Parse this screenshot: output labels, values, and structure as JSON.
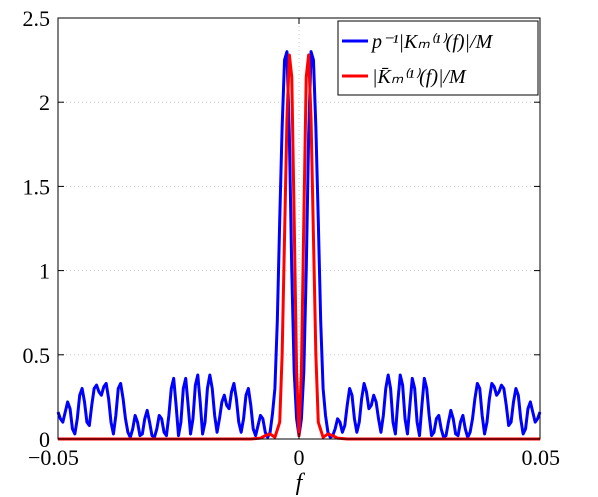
{
  "chart_data": {
    "type": "line",
    "xlabel": "f",
    "ylabel": "",
    "xlim": [
      -0.05,
      0.05
    ],
    "ylim": [
      0,
      2.5
    ],
    "grid": true,
    "legend_position": "top-right",
    "x_ticks": [
      -0.05,
      0,
      0.05
    ],
    "x_tick_labels": [
      "−0.05",
      "0",
      "0.05"
    ],
    "y_ticks": [
      0,
      0.5,
      1,
      1.5,
      2,
      2.5
    ],
    "y_tick_labels": [
      "0",
      "0.5",
      "1",
      "1.5",
      "2",
      "2.5"
    ],
    "series": [
      {
        "name": "p⁻¹|Kₘ⁽¹⁾(f)|/M",
        "color": "#0000ff",
        "x": [
          -0.05,
          -0.0495,
          -0.049,
          -0.0485,
          -0.048,
          -0.0475,
          -0.047,
          -0.0465,
          -0.046,
          -0.0455,
          -0.045,
          -0.0445,
          -0.044,
          -0.0435,
          -0.043,
          -0.0425,
          -0.042,
          -0.0415,
          -0.041,
          -0.0405,
          -0.04,
          -0.0395,
          -0.039,
          -0.0385,
          -0.038,
          -0.0375,
          -0.037,
          -0.0365,
          -0.036,
          -0.0355,
          -0.035,
          -0.0345,
          -0.034,
          -0.0335,
          -0.033,
          -0.0325,
          -0.032,
          -0.0315,
          -0.031,
          -0.0305,
          -0.03,
          -0.0295,
          -0.029,
          -0.0285,
          -0.028,
          -0.0275,
          -0.027,
          -0.0265,
          -0.026,
          -0.0255,
          -0.025,
          -0.0245,
          -0.024,
          -0.0235,
          -0.023,
          -0.0225,
          -0.022,
          -0.0215,
          -0.021,
          -0.0205,
          -0.02,
          -0.0195,
          -0.019,
          -0.0185,
          -0.018,
          -0.0175,
          -0.017,
          -0.0165,
          -0.016,
          -0.0155,
          -0.015,
          -0.0145,
          -0.014,
          -0.0135,
          -0.013,
          -0.0125,
          -0.012,
          -0.0115,
          -0.011,
          -0.0105,
          -0.01,
          -0.0095,
          -0.009,
          -0.0085,
          -0.008,
          -0.0075,
          -0.007,
          -0.0065,
          -0.006,
          -0.0055,
          -0.005,
          -0.0045,
          -0.004,
          -0.0035,
          -0.003,
          -0.0025,
          -0.002,
          -0.0015,
          -0.001,
          -0.0005,
          0,
          0.0005,
          0.001,
          0.0015,
          0.002,
          0.0025,
          0.003,
          0.0035,
          0.004,
          0.0045,
          0.005,
          0.0055,
          0.006,
          0.0065,
          0.007,
          0.0075,
          0.008,
          0.0085,
          0.009,
          0.0095,
          0.01,
          0.0105,
          0.011,
          0.0115,
          0.012,
          0.0125,
          0.013,
          0.0135,
          0.014,
          0.0145,
          0.015,
          0.0155,
          0.016,
          0.0165,
          0.017,
          0.0175,
          0.018,
          0.0185,
          0.019,
          0.0195,
          0.02,
          0.0205,
          0.021,
          0.0215,
          0.022,
          0.0225,
          0.023,
          0.0235,
          0.024,
          0.0245,
          0.025,
          0.0255,
          0.026,
          0.0265,
          0.027,
          0.0275,
          0.028,
          0.0285,
          0.029,
          0.0295,
          0.03,
          0.0305,
          0.031,
          0.0315,
          0.032,
          0.0325,
          0.033,
          0.0335,
          0.034,
          0.0345,
          0.035,
          0.0355,
          0.036,
          0.0365,
          0.037,
          0.0375,
          0.038,
          0.0385,
          0.039,
          0.0395,
          0.04,
          0.0405,
          0.041,
          0.0415,
          0.042,
          0.0425,
          0.043,
          0.0435,
          0.044,
          0.0445,
          0.045,
          0.0455,
          0.046,
          0.0465,
          0.047,
          0.0475,
          0.048,
          0.0485,
          0.049,
          0.0495,
          0.05
        ],
        "y": [
          0.16,
          0.12,
          0.1,
          0.16,
          0.22,
          0.18,
          0.06,
          0.03,
          0.12,
          0.26,
          0.3,
          0.22,
          0.1,
          0.08,
          0.2,
          0.3,
          0.32,
          0.28,
          0.26,
          0.31,
          0.33,
          0.24,
          0.1,
          0.03,
          0.14,
          0.3,
          0.33,
          0.24,
          0.12,
          0.04,
          0.01,
          0.06,
          0.14,
          0.1,
          0.02,
          0.03,
          0.12,
          0.17,
          0.1,
          0.02,
          0.01,
          0.06,
          0.14,
          0.12,
          0.04,
          0.02,
          0.14,
          0.3,
          0.36,
          0.2,
          0.02,
          0.1,
          0.3,
          0.36,
          0.2,
          0.03,
          0.12,
          0.32,
          0.38,
          0.22,
          0.03,
          0.1,
          0.3,
          0.38,
          0.3,
          0.14,
          0.04,
          0.12,
          0.22,
          0.26,
          0.2,
          0.18,
          0.28,
          0.33,
          0.24,
          0.1,
          0.04,
          0.12,
          0.26,
          0.3,
          0.2,
          0.06,
          0.02,
          0.08,
          0.14,
          0.12,
          0.04,
          0.01,
          0.04,
          0.15,
          0.3,
          0.7,
          1.3,
          1.85,
          2.25,
          2.3,
          1.8,
          1.0,
          0.4,
          0.12,
          0.02,
          0.12,
          0.4,
          1.0,
          1.8,
          2.3,
          2.25,
          1.85,
          1.3,
          0.7,
          0.3,
          0.14,
          0.04,
          0.01,
          0.02,
          0.06,
          0.12,
          0.1,
          0.04,
          0.08,
          0.2,
          0.3,
          0.26,
          0.12,
          0.04,
          0.1,
          0.24,
          0.33,
          0.28,
          0.18,
          0.2,
          0.26,
          0.22,
          0.12,
          0.04,
          0.14,
          0.3,
          0.38,
          0.3,
          0.1,
          0.03,
          0.22,
          0.38,
          0.32,
          0.12,
          0.03,
          0.2,
          0.36,
          0.3,
          0.1,
          0.02,
          0.2,
          0.36,
          0.3,
          0.14,
          0.02,
          0.04,
          0.12,
          0.14,
          0.06,
          0.01,
          0.02,
          0.1,
          0.17,
          0.12,
          0.03,
          0.02,
          0.1,
          0.14,
          0.06,
          0.01,
          0.04,
          0.12,
          0.24,
          0.33,
          0.3,
          0.14,
          0.03,
          0.1,
          0.24,
          0.33,
          0.31,
          0.26,
          0.28,
          0.32,
          0.3,
          0.2,
          0.08,
          0.1,
          0.22,
          0.3,
          0.26,
          0.12,
          0.03,
          0.06,
          0.18,
          0.22,
          0.16,
          0.1,
          0.12,
          0.16
        ]
      },
      {
        "name": "|K̄ₘ⁽¹⁾(f)|/M",
        "color": "#ff0000",
        "x": [
          -0.05,
          -0.01,
          -0.008,
          -0.007,
          -0.006,
          -0.005,
          -0.004,
          -0.0035,
          -0.003,
          -0.0025,
          -0.002,
          -0.0015,
          -0.001,
          -0.0005,
          0,
          0.0005,
          0.001,
          0.0015,
          0.002,
          0.0025,
          0.003,
          0.0035,
          0.004,
          0.005,
          0.006,
          0.007,
          0.008,
          0.01,
          0.05
        ],
        "y": [
          0,
          0,
          0.005,
          0.02,
          0.03,
          0.01,
          0.1,
          0.5,
          1.2,
          1.9,
          2.28,
          2.15,
          1.3,
          0.4,
          0.02,
          0.4,
          1.3,
          2.15,
          2.28,
          1.9,
          1.2,
          0.5,
          0.1,
          0.01,
          0.03,
          0.02,
          0.005,
          0,
          0
        ]
      }
    ]
  },
  "legend": {
    "entries": [
      {
        "label": "p⁻¹|Kₘ⁽¹⁾(f)|/M",
        "color": "#0000ff"
      },
      {
        "label": "|K̄ₘ⁽¹⁾(f)|/M",
        "color": "#ff0000"
      }
    ]
  }
}
